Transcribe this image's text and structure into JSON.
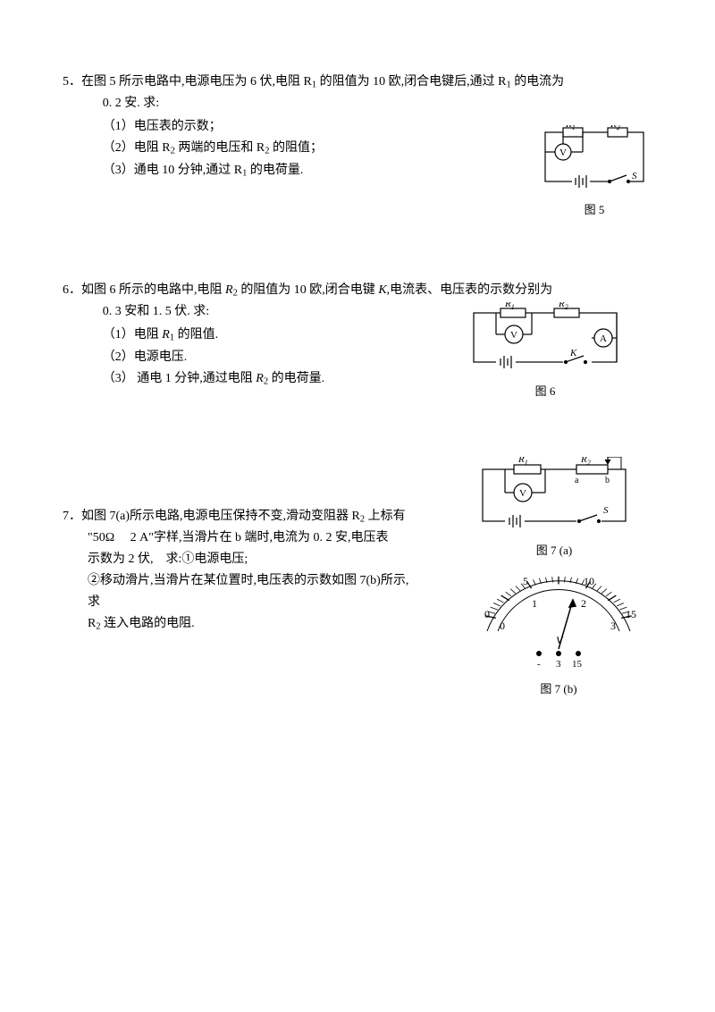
{
  "problems": [
    {
      "num": "5．",
      "stem_a": "在图 5 所示电路中,电源电压为 6 伏,电阻 R",
      "stem_b": " 的阻值为 10 欧,闭合电键后,通过 R",
      "stem_c": " 的电流为",
      "stem_line2": "0. 2 安. 求:",
      "subs": [
        {
          "label": "（1）",
          "text": "电压表的示数；"
        },
        {
          "label": "（2）",
          "text_a": "电阻 R",
          "text_b": " 两端的电压和 R",
          "text_c": " 的阻值；"
        },
        {
          "label": "（3）",
          "text_a": "通电 10 分钟,通过  R",
          "text_b": " 的电荷量."
        }
      ],
      "fig": {
        "caption": "图 5",
        "labels": {
          "R1": "R",
          "R1s": "1",
          "R2": "R",
          "R2s": "2",
          "V": "V",
          "S": "S"
        },
        "stroke": "#000",
        "stroke_width": 1.2,
        "text_size": 11
      }
    },
    {
      "num": "6．",
      "stem_a": "如图 6 所示的电路中,电阻 ",
      "stem_b": " 的阻值为 10 欧,闭合电键 ",
      "stem_c": ",电流表、电压表的示数分别为",
      "stem_R2": "R",
      "stem_R2s": "2",
      "stem_K": "K",
      "stem_line2": "0. 3 安和 1. 5 伏. 求:",
      "subs": [
        {
          "label": "（1）",
          "text_a": "电阻 ",
          "R": "R",
          "Rs": "1",
          "text_b": " 的阻值."
        },
        {
          "label": "（2）",
          "text": "电源电压."
        },
        {
          "label": "（3）",
          "text_a": " 通电 1 分钟,通过电阻 ",
          "R": "R",
          "Rs": "2",
          "text_b": " 的电荷量."
        }
      ],
      "fig": {
        "caption": "图 6",
        "labels": {
          "R1": "R",
          "R1s": "1",
          "R2": "R",
          "R2s": "2",
          "V": "V",
          "A": "A",
          "K": "K"
        },
        "stroke": "#000",
        "stroke_width": 1.2,
        "text_size": 11
      }
    },
    {
      "num": "7．",
      "line1": "如图 7(a)所示电路,电源电压保持不变,滑动变阻器 R",
      "line1s": "2",
      "line1b": " 上标有",
      "line2": "\"50Ω  2 A\"字样,当滑片在 b 端时,电流为 0. 2 安,电压表",
      "line3": "示数为 2 伏, 求:①电源电压;",
      "line4": "②移动滑片,当滑片在某位置时,电压表的示数如图 7(b)所示,求",
      "line5_a": "R",
      "line5_s": "2",
      "line5_b": " 连入电路的电阻.",
      "figA": {
        "caption": "图 7 (a)",
        "labels": {
          "R1": "R",
          "R1s": "1",
          "R2": "R",
          "R2s": "2",
          "V": "V",
          "S": "S",
          "a": "a",
          "b": "b"
        },
        "stroke": "#000",
        "stroke_width": 1.2,
        "text_size": 11
      },
      "figB": {
        "caption": "图 7 (b)",
        "ticks_outer": [
          "0",
          "5",
          "10",
          "15"
        ],
        "ticks_inner": [
          "0",
          "1",
          "2",
          "3"
        ],
        "V": "V",
        "range": [
          "-",
          "3",
          "15"
        ],
        "stroke": "#000",
        "stroke_width": 1.2,
        "text_size": 11
      }
    }
  ]
}
